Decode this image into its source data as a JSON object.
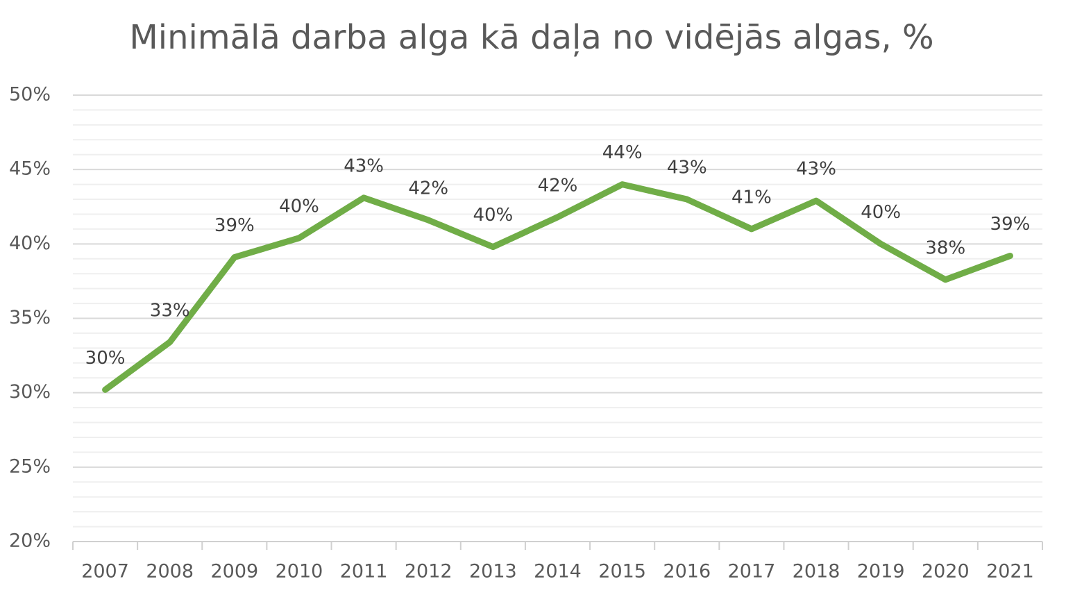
{
  "chart_data": {
    "type": "line",
    "title": "Minimālā darba alga kā daļa no vidējās algas, %",
    "categories": [
      "2007",
      "2008",
      "2009",
      "2010",
      "2011",
      "2012",
      "2013",
      "2014",
      "2015",
      "2016",
      "2017",
      "2018",
      "2019",
      "2020",
      "2021"
    ],
    "series": [
      {
        "name": "Minimālā darba alga kā daļa no vidējās algas",
        "color": "#70ad47",
        "values": [
          30.2,
          33.4,
          39.1,
          40.4,
          43.1,
          41.6,
          39.8,
          41.8,
          44.0,
          43.0,
          41.0,
          42.9,
          40.0,
          37.6,
          39.2
        ],
        "value_labels": [
          "30%",
          "33%",
          "39%",
          "40%",
          "43%",
          "42%",
          "40%",
          "42%",
          "44%",
          "43%",
          "41%",
          "43%",
          "40%",
          "38%",
          "39%"
        ]
      }
    ],
    "ylim": [
      20,
      50
    ],
    "yticks": [
      {
        "value": 20,
        "label": "20%"
      },
      {
        "value": 25,
        "label": "25%"
      },
      {
        "value": 30,
        "label": "30%"
      },
      {
        "value": 35,
        "label": "35%"
      },
      {
        "value": 40,
        "label": "40%"
      },
      {
        "value": 45,
        "label": "45%"
      },
      {
        "value": 50,
        "label": "50%"
      }
    ],
    "grid": true,
    "minor_grid": true
  }
}
